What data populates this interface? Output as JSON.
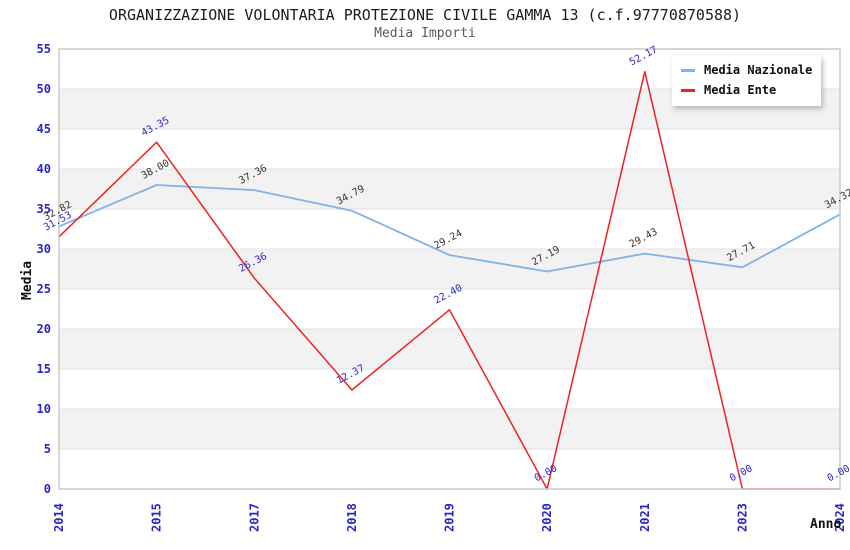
{
  "chart": {
    "title": "ORGANIZZAZIONE VOLONTARIA PROTEZIONE CIVILE GAMMA 13 (c.f.97770870588)",
    "subtitle": "Media Importi"
  },
  "chart_data": {
    "type": "line",
    "title": "ORGANIZZAZIONE VOLONTARIA PROTEZIONE CIVILE GAMMA 13 (c.f.97770870588)",
    "subtitle": "Media Importi",
    "xlabel": "Anno",
    "ylabel": "Media",
    "categories": [
      "2014",
      "2015",
      "2017",
      "2018",
      "2019",
      "2020",
      "2021",
      "2023",
      "2024"
    ],
    "series": [
      {
        "name": "Media Nazionale",
        "color": "#7fb3e6",
        "label_color": "#333333",
        "values": [
          32.82,
          38.0,
          37.36,
          34.79,
          29.24,
          27.19,
          29.43,
          27.71,
          34.32
        ]
      },
      {
        "name": "Media Ente",
        "color": "#ee2222",
        "label_color": "#2a2ac4",
        "values": [
          31.53,
          43.35,
          26.36,
          12.37,
          22.4,
          0.0,
          52.17,
          0.0,
          0.0
        ]
      }
    ],
    "ylim": [
      0,
      55
    ],
    "ytick_step": 5,
    "grid": "horizontal gridlines with alternating shaded bands",
    "legend_position": "top-right",
    "tick_color": "#2626c9",
    "band_color": "#f2f2f2",
    "gridline_color": "#e2e2e2",
    "border_color": "#c9c9c9"
  }
}
